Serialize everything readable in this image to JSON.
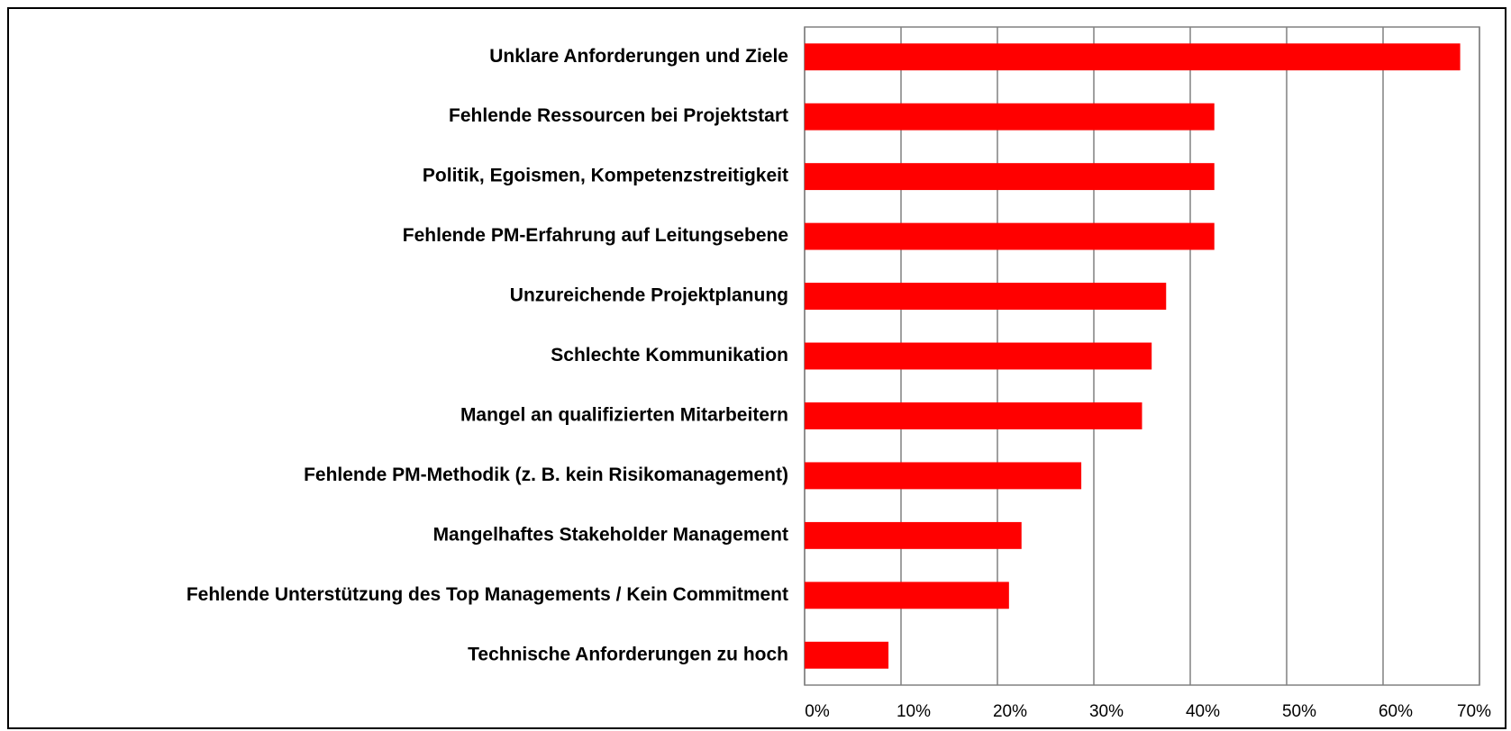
{
  "chart_data": {
    "type": "bar",
    "orientation": "horizontal",
    "categories": [
      "Unklare Anforderungen und Ziele",
      "Fehlende Ressourcen bei Projektstart",
      "Politik, Egoismen, Kompetenzstreitigkeit",
      "Fehlende PM-Erfahrung auf Leitungsebene",
      "Unzureichende Projektplanung",
      "Schlechte Kommunikation",
      "Mangel an qualifizierten Mitarbeitern",
      "Fehlende PM-Methodik (z. B. kein Risikomanagement)",
      "Mangelhaftes Stakeholder Management",
      "Fehlende Unterstützung des Top Managements / Kein Commitment",
      "Technische Anforderungen zu hoch"
    ],
    "values": [
      68,
      42.5,
      42.5,
      42.5,
      37.5,
      36,
      35,
      28.7,
      22.5,
      21.2,
      8.7
    ],
    "color": "#ff0000",
    "xlim": [
      0,
      70
    ],
    "xticks": [
      {
        "value": 0,
        "label": "0%"
      },
      {
        "value": 10,
        "label": "10%"
      },
      {
        "value": 20,
        "label": "20%"
      },
      {
        "value": 30,
        "label": "30%"
      },
      {
        "value": 40,
        "label": "40%"
      },
      {
        "value": 50,
        "label": "50%"
      },
      {
        "value": 60,
        "label": "60%"
      },
      {
        "value": 70,
        "label": "70%"
      }
    ],
    "grid": true
  }
}
